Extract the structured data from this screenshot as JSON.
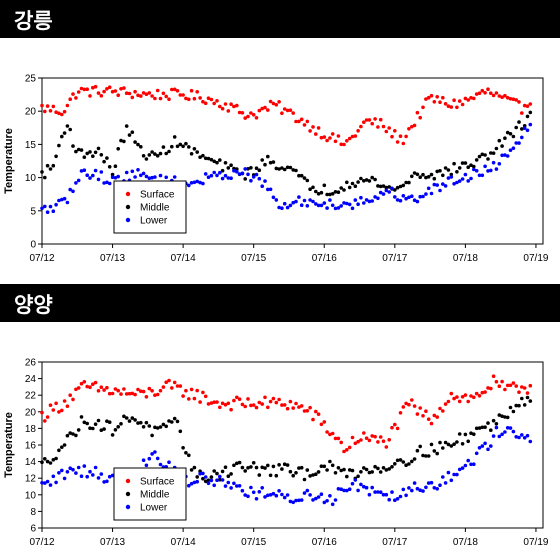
{
  "chart_data": [
    {
      "type": "scatter",
      "panel_title": "강릉",
      "ylabel": "Temperature",
      "xlabel": "",
      "ylim": [
        0,
        25
      ],
      "yticks": [
        0,
        5,
        10,
        15,
        20,
        25
      ],
      "xlim": [
        0,
        7.1
      ],
      "x_tick_labels": [
        "07/12",
        "07/13",
        "07/14",
        "07/15",
        "07/16",
        "07/17",
        "07/18",
        "07/19"
      ],
      "x_units": "days since 07/12",
      "legend": "lower-left",
      "grid": false,
      "series": [
        {
          "name": "Surface",
          "color": "#ff0000",
          "x": [
            0.0,
            0.3,
            0.5,
            1.0,
            1.5,
            2.0,
            2.3,
            2.6,
            2.9,
            3.0,
            3.3,
            3.7,
            4.0,
            4.3,
            4.6,
            4.8,
            5.1,
            5.5,
            5.8,
            6.0,
            6.3,
            6.6,
            6.8,
            6.95
          ],
          "y": [
            20.5,
            20.0,
            23.0,
            23.0,
            22.5,
            22.5,
            22.0,
            21.0,
            19.5,
            19.5,
            21.0,
            18.5,
            16.5,
            15.0,
            18.5,
            18.0,
            15.5,
            22.0,
            21.0,
            21.5,
            23.0,
            21.5,
            20.5,
            22.0
          ]
        },
        {
          "name": "Middle",
          "color": "#000000",
          "x": [
            0.0,
            0.15,
            0.35,
            0.5,
            0.8,
            1.0,
            1.2,
            1.4,
            1.6,
            1.9,
            2.2,
            2.4,
            2.6,
            2.9,
            3.2,
            3.5,
            3.8,
            4.1,
            4.4,
            4.7,
            5.0,
            5.3,
            5.6,
            5.9,
            6.2,
            6.5,
            6.8,
            6.95
          ],
          "y": [
            10.5,
            11.5,
            18.5,
            13.5,
            14.0,
            11.0,
            17.5,
            14.0,
            13.0,
            15.5,
            13.5,
            12.5,
            11.5,
            10.5,
            12.5,
            11.5,
            8.5,
            8.0,
            9.5,
            9.5,
            8.0,
            10.5,
            10.5,
            11.5,
            12.5,
            15.0,
            18.0,
            20.0
          ]
        },
        {
          "name": "Lower",
          "color": "#0000ff",
          "x": [
            0.0,
            0.3,
            0.6,
            1.0,
            1.3,
            1.6,
            2.0,
            2.4,
            2.8,
            3.1,
            3.4,
            3.7,
            4.0,
            4.3,
            4.6,
            4.9,
            5.2,
            5.5,
            5.8,
            6.1,
            6.4,
            6.7,
            6.95
          ],
          "y": [
            5.0,
            6.0,
            11.0,
            9.5,
            10.5,
            10.0,
            9.0,
            10.0,
            11.0,
            9.5,
            5.5,
            6.5,
            6.0,
            6.0,
            6.5,
            8.0,
            6.5,
            8.0,
            9.5,
            10.5,
            11.5,
            15.0,
            19.0
          ]
        }
      ],
      "legend_entries": [
        "Surface",
        "Middle",
        "Lower"
      ]
    },
    {
      "type": "scatter",
      "panel_title": "양양",
      "ylabel": "Temperature",
      "xlabel": "",
      "ylim": [
        6,
        26
      ],
      "yticks": [
        6,
        8,
        10,
        12,
        14,
        16,
        18,
        20,
        22,
        24,
        26
      ],
      "xlim": [
        0,
        7.1
      ],
      "x_tick_labels": [
        "07/12",
        "07/13",
        "07/14",
        "07/15",
        "07/16",
        "07/17",
        "07/18",
        "07/19"
      ],
      "x_units": "days since 07/12",
      "legend": "lower-left",
      "grid": false,
      "series": [
        {
          "name": "Surface",
          "color": "#ff0000",
          "x": [
            0.0,
            0.3,
            0.6,
            1.0,
            1.4,
            1.8,
            2.2,
            2.5,
            2.8,
            3.1,
            3.5,
            3.8,
            4.1,
            4.3,
            4.5,
            4.7,
            4.9,
            5.2,
            5.5,
            5.8,
            6.1,
            6.4,
            6.6,
            6.8,
            6.95
          ],
          "y": [
            19.5,
            21.0,
            23.0,
            22.5,
            22.0,
            23.0,
            22.0,
            21.0,
            21.0,
            21.0,
            21.0,
            20.0,
            17.5,
            15.5,
            17.0,
            16.5,
            16.5,
            21.0,
            19.0,
            22.0,
            21.5,
            23.5,
            22.5,
            23.0,
            23.0
          ]
        },
        {
          "name": "Middle",
          "color": "#000000",
          "x": [
            0.0,
            0.3,
            0.6,
            1.0,
            1.3,
            1.6,
            1.9,
            2.2,
            2.5,
            2.8,
            3.1,
            3.4,
            3.7,
            4.0,
            4.3,
            4.6,
            4.9,
            5.2,
            5.5,
            5.8,
            6.1,
            6.4,
            6.6,
            6.8,
            6.95
          ],
          "y": [
            13.5,
            16.0,
            19.0,
            18.0,
            19.5,
            17.5,
            18.5,
            12.0,
            12.5,
            13.5,
            13.0,
            13.0,
            12.5,
            13.5,
            12.5,
            13.0,
            13.5,
            14.5,
            15.5,
            16.0,
            17.5,
            18.5,
            20.0,
            21.5,
            22.0
          ]
        },
        {
          "name": "Lower",
          "color": "#0000ff",
          "x": [
            0.0,
            0.3,
            0.6,
            1.0,
            1.3,
            1.6,
            2.0,
            2.3,
            2.6,
            2.9,
            3.2,
            3.5,
            3.8,
            4.1,
            4.4,
            4.7,
            5.0,
            5.3,
            5.6,
            5.9,
            6.2,
            6.4,
            6.6,
            6.8,
            6.95
          ],
          "y": [
            11.0,
            12.5,
            13.0,
            12.0,
            12.5,
            15.0,
            11.5,
            12.0,
            11.5,
            10.5,
            10.0,
            9.5,
            10.0,
            9.5,
            11.5,
            10.5,
            10.0,
            11.0,
            11.5,
            12.5,
            15.0,
            17.0,
            18.5,
            17.0,
            16.0
          ]
        }
      ],
      "legend_entries": [
        "Surface",
        "Middle",
        "Lower"
      ]
    }
  ]
}
